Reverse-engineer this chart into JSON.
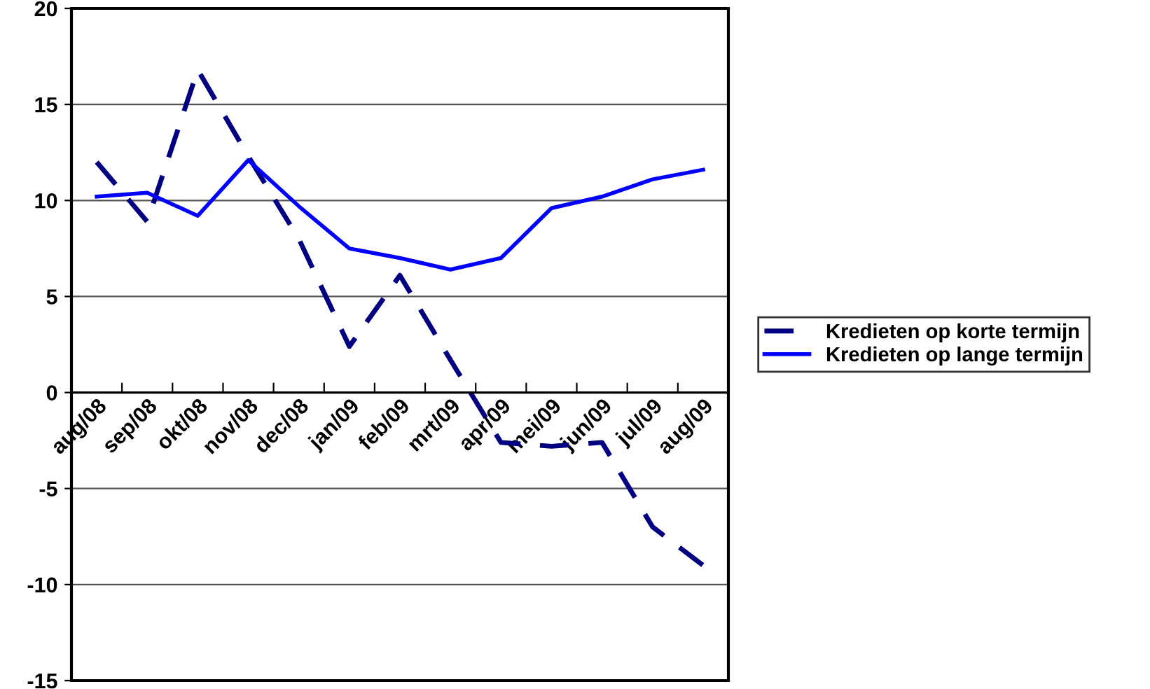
{
  "chart_data": {
    "type": "line",
    "categories": [
      "aug/08",
      "sep/08",
      "okt/08",
      "nov/08",
      "dec/08",
      "jan/09",
      "feb/09",
      "mrt/09",
      "apr/09",
      "mei/09",
      "jun/09",
      "jul/09",
      "aug/09"
    ],
    "series": [
      {
        "name": "Kredieten op korte termijn",
        "color": "#000080",
        "line_style": "dashed",
        "values": [
          12.0,
          8.9,
          16.8,
          12.3,
          8.0,
          2.4,
          6.1,
          1.7,
          -2.6,
          -2.8,
          -2.6,
          -7.0,
          -9.0
        ]
      },
      {
        "name": "Kredieten op lange termijn",
        "color": "#0000ff",
        "line_style": "solid",
        "values": [
          10.2,
          10.4,
          9.2,
          12.1,
          9.7,
          7.5,
          7.0,
          6.4,
          7.0,
          9.6,
          10.2,
          11.1,
          11.6
        ]
      }
    ],
    "ylim": [
      -15,
      20
    ],
    "yticks": [
      -15,
      -10,
      -5,
      0,
      5,
      10,
      15,
      20
    ],
    "grid": "y",
    "legend": "right"
  }
}
